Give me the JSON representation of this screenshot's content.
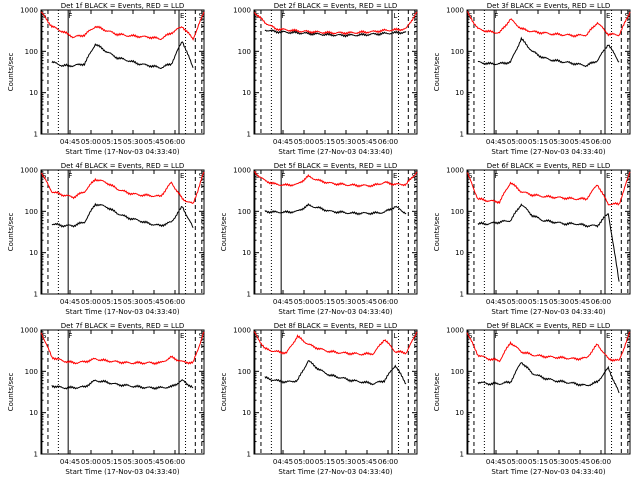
{
  "figure": {
    "panels": [
      {
        "title": "Det 1f BLACK = Events, RED = LLD",
        "xlabel": "Start Time (17-Nov-03 04:33:40)",
        "ylabel": "Counts/sec",
        "markers": [
          "S",
          "F",
          "E",
          "S"
        ]
      },
      {
        "title": "Det 2f BLACK = Events, RED = LLD",
        "xlabel": "Start Time (27-Nov-03 04:33:40)",
        "ylabel": "",
        "markers": [
          "S",
          "F",
          "L",
          "S"
        ]
      },
      {
        "title": "Det 3f BLACK = Events, RED = LLD",
        "xlabel": "Start Time (27-Nov-03 04:33:40)",
        "ylabel": "Counts/sec",
        "markers": [
          "S",
          "F",
          "E",
          "S"
        ]
      },
      {
        "title": "Det 4f BLACK = Events, RED = LLD",
        "xlabel": "Start Time (17-Nov-03 04:33:40)",
        "ylabel": "Counts/sec",
        "markers": [
          "S",
          "F",
          "E",
          "S"
        ]
      },
      {
        "title": "Det 5f BLACK = Events, RED = LLD",
        "xlabel": "Start Time (27-Nov-03 04:33:40)",
        "ylabel": "Counts/sec",
        "markers": [
          "S",
          "F",
          "E",
          "S"
        ]
      },
      {
        "title": "Det 6f BLACK = Events, RED = LLD",
        "xlabel": "Start Time (27-Nov-03 04:33:40)",
        "ylabel": "Counts/sec",
        "markers": [
          "S",
          "F",
          "E",
          "S"
        ]
      },
      {
        "title": "Det 7f BLACK = Events, RED = LLD",
        "xlabel": "Start Time (17-Nov-03 04:33:40)",
        "ylabel": "Counts/sec",
        "markers": [
          "S",
          "F",
          "E",
          "S"
        ]
      },
      {
        "title": "Det 8f BLACK = Events, RED = LLD",
        "xlabel": "Start Time (27-Nov-03 04:33:40)",
        "ylabel": "Counts/sec",
        "markers": [
          "S",
          "F",
          "L",
          "S"
        ]
      },
      {
        "title": "Det 9f BLACK = Events, RED = LLD",
        "xlabel": "Start Time (27-Nov-03 04:33:40)",
        "ylabel": "Counts/sec",
        "markers": [
          "S",
          "F",
          "E",
          "S"
        ]
      }
    ]
  },
  "chart_data": [
    {
      "type": "line",
      "title": "Det 1f BLACK = Events, RED = LLD",
      "xlabel": "Start Time (17-Nov-03 04:33:40)",
      "ylabel": "Counts/sec",
      "xticks": [
        "04:45",
        "05:00",
        "05:15",
        "05:30",
        "05:45",
        "06:00"
      ],
      "yticks": [
        "1",
        "10",
        "100",
        "1000"
      ],
      "y_scale": "log",
      "ylim": [
        1,
        1000
      ],
      "series": [
        {
          "name": "LLD",
          "color": "#ff0000",
          "x": [
            0,
            5,
            10,
            15,
            20,
            25,
            30,
            35,
            40,
            45,
            50,
            55,
            60,
            65,
            70,
            75
          ],
          "y": [
            900,
            400,
            300,
            220,
            250,
            400,
            320,
            260,
            240,
            230,
            220,
            200,
            280,
            400,
            200,
            900
          ]
        },
        {
          "name": "Events",
          "color": "#000000",
          "x": [
            5,
            10,
            15,
            20,
            25,
            30,
            35,
            40,
            45,
            50,
            55,
            60,
            65,
            70
          ],
          "y": [
            55,
            45,
            45,
            50,
            150,
            100,
            70,
            60,
            50,
            45,
            40,
            50,
            180,
            40
          ]
        }
      ]
    },
    {
      "type": "line",
      "title": "Det 2f BLACK = Events, RED = LLD",
      "xlabel": "Start Time (27-Nov-03 04:33:40)",
      "ylabel": "",
      "xticks": [
        "04:45",
        "05:00",
        "05:15",
        "05:30",
        "05:45",
        "06:00"
      ],
      "yticks": [
        "1",
        "10",
        "100",
        "1000"
      ],
      "y_scale": "log",
      "ylim": [
        1,
        1000
      ],
      "series": [
        {
          "name": "LLD",
          "color": "#ff0000",
          "x": [
            0,
            5,
            10,
            15,
            20,
            25,
            30,
            35,
            40,
            45,
            50,
            55,
            60,
            65,
            70,
            75
          ],
          "y": [
            900,
            500,
            350,
            330,
            310,
            300,
            290,
            280,
            280,
            280,
            290,
            300,
            320,
            330,
            350,
            900
          ]
        },
        {
          "name": "Events",
          "color": "#000000",
          "x": [
            5,
            10,
            15,
            20,
            25,
            30,
            35,
            40,
            45,
            50,
            55,
            60,
            65,
            70
          ],
          "y": [
            330,
            300,
            290,
            280,
            270,
            260,
            250,
            245,
            245,
            250,
            260,
            270,
            280,
            290
          ]
        }
      ]
    },
    {
      "type": "line",
      "title": "Det 3f BLACK = Events, RED = LLD",
      "xlabel": "Start Time (27-Nov-03 04:33:40)",
      "ylabel": "Counts/sec",
      "xticks": [
        "04:45",
        "05:00",
        "05:15",
        "05:30",
        "05:45",
        "06:00"
      ],
      "yticks": [
        "1",
        "10",
        "100",
        "1000"
      ],
      "y_scale": "log",
      "ylim": [
        1,
        1000
      ],
      "series": [
        {
          "name": "LLD",
          "color": "#ff0000",
          "x": [
            0,
            5,
            10,
            15,
            20,
            25,
            30,
            35,
            40,
            45,
            50,
            55,
            60,
            65,
            70,
            75
          ],
          "y": [
            900,
            350,
            300,
            280,
            600,
            350,
            300,
            280,
            260,
            250,
            240,
            250,
            500,
            260,
            250,
            900
          ]
        },
        {
          "name": "Events",
          "color": "#000000",
          "x": [
            5,
            10,
            15,
            20,
            25,
            30,
            35,
            40,
            45,
            50,
            55,
            60,
            65,
            70
          ],
          "y": [
            55,
            50,
            50,
            55,
            200,
            100,
            70,
            60,
            55,
            50,
            45,
            60,
            150,
            55
          ]
        }
      ]
    },
    {
      "type": "line",
      "title": "Det 4f BLACK = Events, RED = LLD",
      "xlabel": "Start Time (17-Nov-03 04:33:40)",
      "ylabel": "Counts/sec",
      "xticks": [
        "04:45",
        "05:00",
        "05:15",
        "05:30",
        "05:45",
        "06:00"
      ],
      "yticks": [
        "1",
        "10",
        "100",
        "1000"
      ],
      "y_scale": "log",
      "ylim": [
        1,
        1000
      ],
      "series": [
        {
          "name": "LLD",
          "color": "#ff0000",
          "x": [
            0,
            5,
            10,
            15,
            20,
            25,
            30,
            35,
            40,
            45,
            50,
            55,
            60,
            65,
            70,
            75
          ],
          "y": [
            900,
            300,
            250,
            220,
            300,
            600,
            500,
            350,
            280,
            250,
            240,
            230,
            500,
            200,
            150,
            900
          ]
        },
        {
          "name": "Events",
          "color": "#000000",
          "x": [
            5,
            10,
            15,
            20,
            25,
            30,
            35,
            40,
            45,
            50,
            55,
            60,
            65,
            70
          ],
          "y": [
            50,
            45,
            45,
            55,
            150,
            130,
            90,
            70,
            60,
            50,
            45,
            55,
            130,
            40
          ]
        }
      ]
    },
    {
      "type": "line",
      "title": "Det 5f BLACK = Events, RED = LLD",
      "xlabel": "Start Time (27-Nov-03 04:33:40)",
      "ylabel": "Counts/sec",
      "xticks": [
        "04:45",
        "05:00",
        "05:15",
        "05:30",
        "05:45",
        "06:00"
      ],
      "yticks": [
        "1",
        "10",
        "100",
        "1000"
      ],
      "y_scale": "log",
      "ylim": [
        1,
        1000
      ],
      "series": [
        {
          "name": "LLD",
          "color": "#ff0000",
          "x": [
            0,
            5,
            10,
            15,
            20,
            25,
            30,
            35,
            40,
            45,
            50,
            55,
            60,
            65,
            70,
            75
          ],
          "y": [
            900,
            550,
            450,
            430,
            450,
            700,
            550,
            480,
            450,
            430,
            420,
            420,
            500,
            450,
            450,
            900
          ]
        },
        {
          "name": "Events",
          "color": "#000000",
          "x": [
            5,
            10,
            15,
            20,
            25,
            30,
            35,
            40,
            45,
            50,
            55,
            60,
            65,
            70
          ],
          "y": [
            100,
            95,
            95,
            100,
            140,
            120,
            100,
            95,
            90,
            90,
            90,
            95,
            130,
            90
          ]
        }
      ]
    },
    {
      "type": "line",
      "title": "Det 6f BLACK = Events, RED = LLD",
      "xlabel": "Start Time (27-Nov-03 04:33:40)",
      "ylabel": "Counts/sec",
      "xticks": [
        "04:45",
        "05:00",
        "05:15",
        "05:30",
        "05:45",
        "06:00"
      ],
      "yticks": [
        "1",
        "10",
        "100",
        "1000"
      ],
      "y_scale": "log",
      "ylim": [
        1,
        1000
      ],
      "series": [
        {
          "name": "LLD",
          "color": "#ff0000",
          "x": [
            0,
            5,
            10,
            15,
            20,
            25,
            30,
            35,
            40,
            45,
            50,
            55,
            60,
            65,
            70,
            75
          ],
          "y": [
            900,
            200,
            180,
            170,
            500,
            300,
            250,
            230,
            220,
            210,
            200,
            200,
            450,
            150,
            150,
            900
          ]
        },
        {
          "name": "Events",
          "color": "#000000",
          "x": [
            5,
            10,
            15,
            20,
            25,
            30,
            35,
            40,
            45,
            50,
            55,
            60,
            65,
            70
          ],
          "y": [
            50,
            50,
            55,
            60,
            150,
            80,
            60,
            55,
            50,
            50,
            45,
            45,
            90,
            2
          ]
        }
      ]
    },
    {
      "type": "line",
      "title": "Det 7f BLACK = Events, RED = LLD",
      "xlabel": "Start Time (17-Nov-03 04:33:40)",
      "ylabel": "Counts/sec",
      "xticks": [
        "04:45",
        "05:00",
        "05:15",
        "05:30",
        "05:45",
        "06:00"
      ],
      "yticks": [
        "1",
        "10",
        "100",
        "1000"
      ],
      "y_scale": "log",
      "ylim": [
        1,
        1000
      ],
      "series": [
        {
          "name": "LLD",
          "color": "#ff0000",
          "x": [
            0,
            5,
            10,
            15,
            20,
            25,
            30,
            35,
            40,
            45,
            50,
            55,
            60,
            65,
            70,
            75
          ],
          "y": [
            900,
            220,
            180,
            160,
            170,
            200,
            180,
            170,
            160,
            160,
            160,
            160,
            220,
            170,
            160,
            900
          ]
        },
        {
          "name": "Events",
          "color": "#000000",
          "x": [
            5,
            10,
            15,
            20,
            25,
            30,
            35,
            40,
            45,
            50,
            55,
            60,
            65,
            70
          ],
          "y": [
            45,
            40,
            40,
            42,
            60,
            55,
            48,
            45,
            42,
            40,
            40,
            42,
            60,
            40
          ]
        }
      ]
    },
    {
      "type": "line",
      "title": "Det 8f BLACK = Events, RED = LLD",
      "xlabel": "Start Time (27-Nov-03 04:33:40)",
      "ylabel": "Counts/sec",
      "xticks": [
        "04:45",
        "05:00",
        "05:15",
        "05:30",
        "05:45",
        "06:00"
      ],
      "yticks": [
        "1",
        "10",
        "100",
        "1000"
      ],
      "y_scale": "log",
      "ylim": [
        1,
        1000
      ],
      "series": [
        {
          "name": "LLD",
          "color": "#ff0000",
          "x": [
            0,
            5,
            10,
            15,
            20,
            25,
            30,
            35,
            40,
            45,
            50,
            55,
            60,
            65,
            70,
            75
          ],
          "y": [
            900,
            350,
            300,
            280,
            700,
            450,
            350,
            300,
            280,
            270,
            260,
            270,
            600,
            300,
            280,
            900
          ]
        },
        {
          "name": "Events",
          "color": "#000000",
          "x": [
            5,
            10,
            15,
            20,
            25,
            30,
            35,
            40,
            45,
            50,
            55,
            60,
            65,
            70
          ],
          "y": [
            70,
            60,
            55,
            60,
            180,
            110,
            80,
            70,
            60,
            55,
            50,
            60,
            140,
            50
          ]
        }
      ]
    },
    {
      "type": "line",
      "title": "Det 9f BLACK = Events, RED = LLD",
      "xlabel": "Start Time (27-Nov-03 04:33:40)",
      "ylabel": "Counts/sec",
      "xticks": [
        "04:45",
        "05:00",
        "05:15",
        "05:30",
        "05:45",
        "06:00"
      ],
      "yticks": [
        "1",
        "10",
        "100",
        "1000"
      ],
      "y_scale": "log",
      "ylim": [
        1,
        1000
      ],
      "series": [
        {
          "name": "LLD",
          "color": "#ff0000",
          "x": [
            0,
            5,
            10,
            15,
            20,
            25,
            30,
            35,
            40,
            45,
            50,
            55,
            60,
            65,
            70,
            75
          ],
          "y": [
            900,
            250,
            200,
            180,
            500,
            300,
            250,
            230,
            220,
            210,
            200,
            210,
            450,
            200,
            180,
            900
          ]
        },
        {
          "name": "Events",
          "color": "#000000",
          "x": [
            5,
            10,
            15,
            20,
            25,
            30,
            35,
            40,
            45,
            50,
            55,
            60,
            65,
            70
          ],
          "y": [
            55,
            50,
            50,
            55,
            170,
            90,
            70,
            60,
            55,
            50,
            45,
            55,
            120,
            30
          ]
        }
      ]
    }
  ]
}
